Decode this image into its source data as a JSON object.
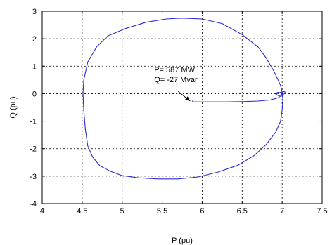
{
  "chart_data": {
    "type": "line",
    "title": "",
    "xlabel": "P (pu)",
    "ylabel": "Q (pu)",
    "xlim": [
      4,
      7.5
    ],
    "ylim": [
      -4,
      3
    ],
    "xticks": [
      4,
      4.5,
      5,
      5.5,
      6,
      6.5,
      7,
      7.5
    ],
    "xtick_labels": [
      "4",
      "4.5",
      "5",
      "5.5",
      "6",
      "6.5",
      "7",
      "7.5"
    ],
    "yticks": [
      -4,
      -3,
      -2,
      -1,
      0,
      1,
      2,
      3
    ],
    "ytick_labels": [
      "-4",
      "-3",
      "-2",
      "-1",
      "0",
      "1",
      "2",
      "3"
    ],
    "grid": true,
    "series_color": "#2a2ad6",
    "series": [
      {
        "x": [
          5.88,
          5.88,
          6.1,
          6.3,
          6.5,
          6.7,
          6.85,
          6.95,
          7.0,
          7.04,
          7.03,
          6.98,
          6.92,
          6.96,
          7.0,
          7.0,
          6.98,
          6.9,
          6.8,
          6.7,
          6.5,
          6.25,
          6.0,
          5.75,
          5.55,
          5.3,
          5.05,
          4.82,
          4.68,
          4.57,
          4.52,
          4.51,
          4.52,
          4.54,
          4.57,
          4.63,
          4.72,
          4.85,
          5.0,
          5.2,
          5.45,
          5.7,
          5.95,
          6.2,
          6.45,
          6.65,
          6.8,
          6.92,
          6.98,
          7.0,
          7.01,
          7.0,
          6.98,
          6.95,
          6.92
        ],
        "y": [
          -0.25,
          -0.3,
          -0.3,
          -0.3,
          -0.29,
          -0.27,
          -0.23,
          -0.15,
          -0.05,
          0.02,
          0.08,
          0.05,
          -0.02,
          -0.08,
          -0.02,
          0.05,
          0.3,
          0.8,
          1.3,
          1.7,
          2.15,
          2.55,
          2.72,
          2.75,
          2.72,
          2.6,
          2.38,
          2.1,
          1.7,
          1.15,
          0.5,
          0.0,
          -0.6,
          -1.3,
          -1.9,
          -2.3,
          -2.62,
          -2.82,
          -2.98,
          -3.06,
          -3.1,
          -3.1,
          -3.03,
          -2.85,
          -2.6,
          -2.25,
          -1.85,
          -1.4,
          -1.0,
          -0.6,
          -0.2,
          0.0,
          0.03,
          0.05,
          0.02
        ]
      }
    ],
    "annotations": [
      {
        "lines": [
          "P= 587 MW",
          "Q= -27 Mvar"
        ],
        "arrow_to": [
          5.85,
          -0.27
        ],
        "arrow_from": [
          5.7,
          0.08
        ],
        "text_at": [
          5.4,
          0.78
        ]
      }
    ]
  }
}
